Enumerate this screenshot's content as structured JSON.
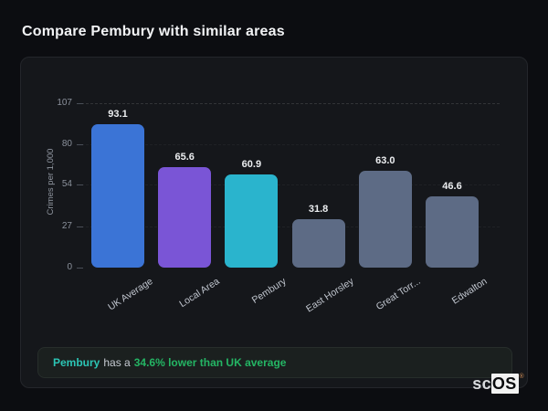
{
  "page": {
    "title": "Compare Pembury with similar areas"
  },
  "chart_data": {
    "type": "bar",
    "title": "",
    "xlabel": "",
    "ylabel": "Crimes per 1,000",
    "ylim": [
      0,
      107
    ],
    "yticks": [
      0,
      27,
      54,
      80,
      107
    ],
    "grid": "dashed-horizontal",
    "legend": "none",
    "categories": [
      "UK Average",
      "Local Area",
      "Pembury",
      "East Horsley",
      "Great Torr...",
      "Edwalton"
    ],
    "values": [
      93.1,
      65.6,
      60.9,
      31.8,
      63.0,
      46.6
    ],
    "value_labels": [
      "93.1",
      "65.6",
      "60.9",
      "31.8",
      "63.0",
      "46.6"
    ],
    "bar_colors": [
      "#3b74d6",
      "#7a55d6",
      "#2ab4cd",
      "#5d6b85",
      "#5d6b85",
      "#5d6b85"
    ]
  },
  "note": {
    "subject": "Pembury",
    "middle": "has a",
    "highlight": "34.6% lower than UK average",
    "subject_color": "#2cc5b5",
    "highlight_color": "#24b564"
  },
  "logo": {
    "prefix": "sc",
    "suffix": "OS",
    "reg": "®"
  },
  "colors": {
    "page_bg": "#0c0d11",
    "card_bg": "#15171b",
    "card_border": "#24262b",
    "note_bg": "#1b201f",
    "tick_text": "#8b919c",
    "axis_text": "#9096a0",
    "xlabel_text": "#c2c7d0",
    "value_text": "#eceef0"
  }
}
